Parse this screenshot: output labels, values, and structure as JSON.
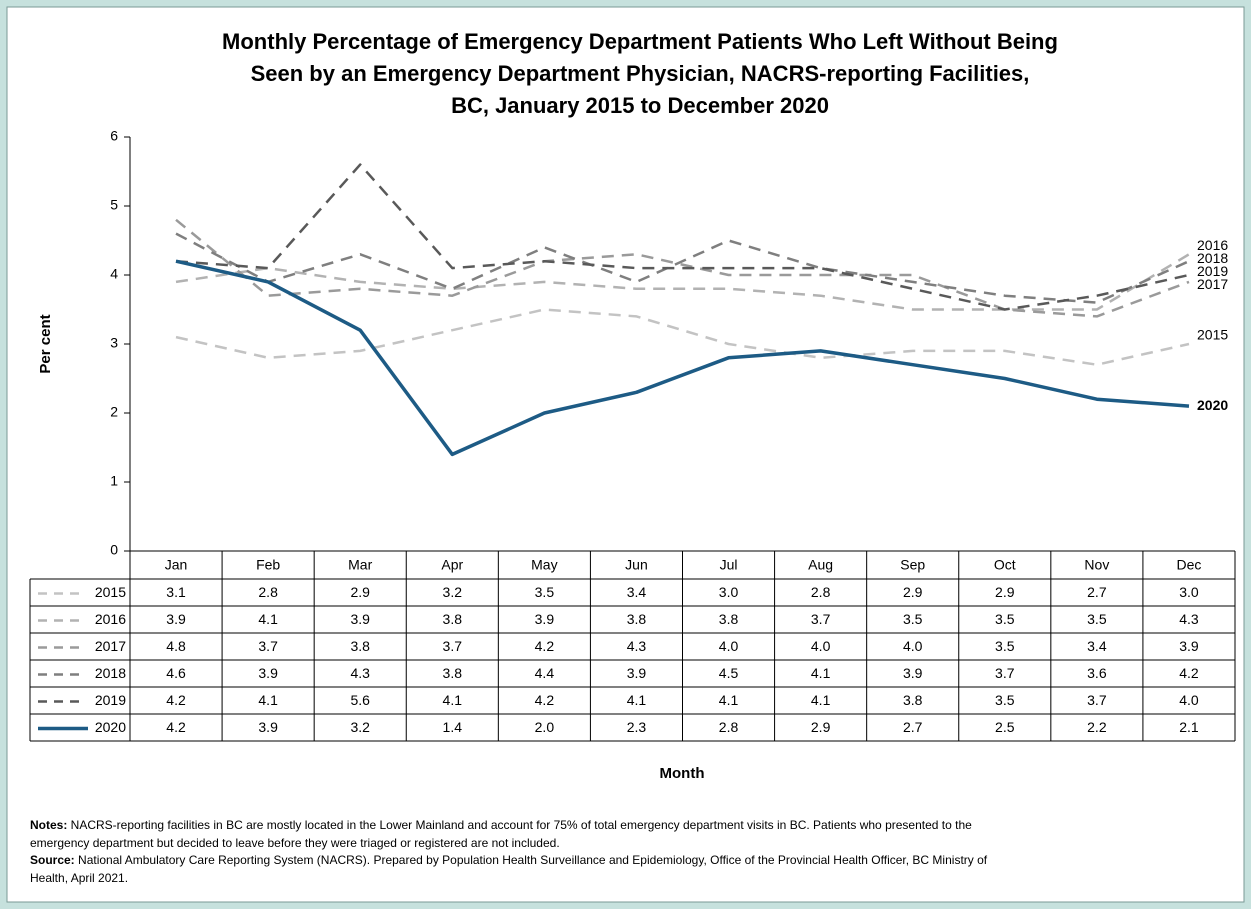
{
  "chart_data": {
    "type": "line",
    "title": [
      "Monthly Percentage of Emergency Department Patients Who Left Without Being",
      "Seen by an Emergency Department Physician, NACRS-reporting Facilities,",
      "BC, January 2015 to December 2020"
    ],
    "y_label": "Per cent",
    "x_label": "Month",
    "categories": [
      "Jan",
      "Feb",
      "Mar",
      "Apr",
      "May",
      "Jun",
      "Jul",
      "Aug",
      "Sep",
      "Oct",
      "Nov",
      "Dec"
    ],
    "ylim": [
      0,
      6
    ],
    "yticks": [
      0,
      1,
      2,
      3,
      4,
      5,
      6
    ],
    "series": [
      {
        "name": "2015",
        "color": "#c3c3c3",
        "values": [
          3.1,
          2.8,
          2.9,
          3.2,
          3.5,
          3.4,
          3.0,
          2.8,
          2.9,
          2.9,
          2.7,
          3.0
        ],
        "value_labels": [
          "3.1",
          "2.8",
          "2.9",
          "3.2",
          "3.5",
          "3.4",
          "3.0",
          "2.8",
          "2.9",
          "2.9",
          "2.7",
          "3.0"
        ]
      },
      {
        "name": "2016",
        "color": "#b2b2b2",
        "values": [
          3.9,
          4.1,
          3.9,
          3.8,
          3.9,
          3.8,
          3.8,
          3.7,
          3.5,
          3.5,
          3.5,
          4.3
        ],
        "value_labels": [
          "3.9",
          "4.1",
          "3.9",
          "3.8",
          "3.9",
          "3.8",
          "3.8",
          "3.7",
          "3.5",
          "3.5",
          "3.5",
          "4.3"
        ]
      },
      {
        "name": "2017",
        "color": "#9a9a9a",
        "values": [
          4.8,
          3.7,
          3.8,
          3.7,
          4.2,
          4.3,
          4.0,
          4.0,
          4.0,
          3.5,
          3.4,
          3.9
        ],
        "value_labels": [
          "4.8",
          "3.7",
          "3.8",
          "3.7",
          "4.2",
          "4.3",
          "4.0",
          "4.0",
          "4.0",
          "3.5",
          "3.4",
          "3.9"
        ]
      },
      {
        "name": "2018",
        "color": "#7f7f7f",
        "values": [
          4.6,
          3.9,
          4.3,
          3.8,
          4.4,
          3.9,
          4.5,
          4.1,
          3.9,
          3.7,
          3.6,
          4.2
        ],
        "value_labels": [
          "4.6",
          "3.9",
          "4.3",
          "3.8",
          "4.4",
          "3.9",
          "4.5",
          "4.1",
          "3.9",
          "3.7",
          "3.6",
          "4.2"
        ]
      },
      {
        "name": "2019",
        "color": "#595959",
        "values": [
          4.2,
          4.1,
          5.6,
          4.1,
          4.2,
          4.1,
          4.1,
          4.1,
          3.8,
          3.5,
          3.7,
          4.0
        ],
        "value_labels": [
          "4.2",
          "4.1",
          "5.6",
          "4.1",
          "4.2",
          "4.1",
          "4.1",
          "4.1",
          "3.8",
          "3.5",
          "3.7",
          "4.0"
        ]
      },
      {
        "name": "2020",
        "color": "#1d5b85",
        "values": [
          4.2,
          3.9,
          3.2,
          1.4,
          2.0,
          2.3,
          2.8,
          2.9,
          2.7,
          2.5,
          2.2,
          2.1
        ],
        "value_labels": [
          "4.2",
          "3.9",
          "3.2",
          "1.4",
          "2.0",
          "2.3",
          "2.8",
          "2.9",
          "2.7",
          "2.5",
          "2.2",
          "2.1"
        ]
      }
    ]
  },
  "notes": {
    "label": "Notes:",
    "lines": [
      " NACRS-reporting facilities in BC are mostly located in the Lower Mainland and account for 75% of total emergency department visits in BC. Patients who presented to the",
      "emergency department but decided to leave before they were triaged or registered are not included."
    ]
  },
  "source": {
    "label": "Source:",
    "lines": [
      " National Ambulatory Care Reporting System (NACRS). Prepared by Population Health Surveillance and Epidemiology, Office of the Provincial Health Officer, BC Ministry of",
      "Health, April 2021."
    ]
  }
}
